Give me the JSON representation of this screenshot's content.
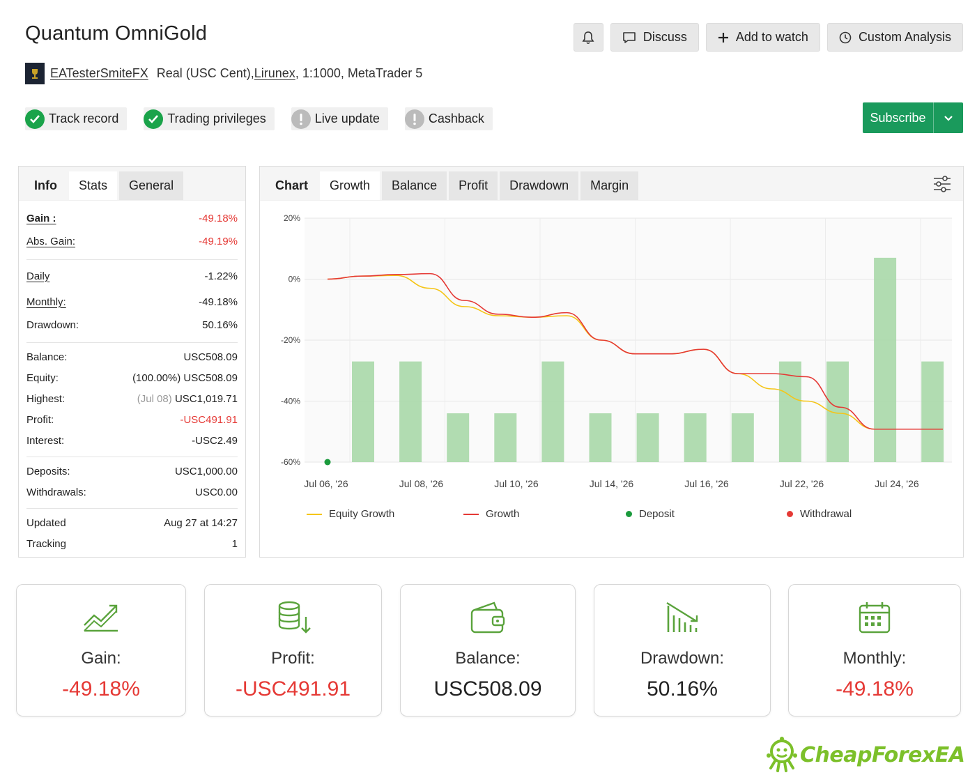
{
  "header": {
    "title": "Quantum OmniGold",
    "author": "EATesterSmiteFX",
    "account_prefix": "Real (USC Cent), ",
    "broker": "Lirunex",
    "account_suffix": ", 1:1000, MetaTrader 5"
  },
  "actions": {
    "discuss": "Discuss",
    "add_to_watch": "Add to watch",
    "custom_analysis": "Custom Analysis",
    "subscribe": "Subscribe"
  },
  "badges": [
    {
      "label": "Track record",
      "status": "ok"
    },
    {
      "label": "Trading privileges",
      "status": "ok"
    },
    {
      "label": "Live update",
      "status": "warn"
    },
    {
      "label": "Cashback",
      "status": "warn"
    }
  ],
  "info_tabs": [
    "Info",
    "Stats",
    "General"
  ],
  "info": {
    "gain_label": "Gain :",
    "gain": "-49.18%",
    "abs_gain_label": "Abs. Gain:",
    "abs_gain": "-49.19%",
    "daily_label": "Daily",
    "daily": "-1.22%",
    "monthly_label": "Monthly:",
    "monthly": "-49.18%",
    "drawdown_label": "Drawdown:",
    "drawdown": "50.16%",
    "balance_label": "Balance:",
    "balance": "USC508.09",
    "equity_label": "Equity:",
    "equity": "(100.00%) USC508.09",
    "highest_label": "Highest:",
    "highest_date": "(Jul 08)",
    "highest": "USC1,019.71",
    "profit_label": "Profit:",
    "profit": "-USC491.91",
    "interest_label": "Interest:",
    "interest": "-USC2.49",
    "deposits_label": "Deposits:",
    "deposits": "USC1,000.00",
    "withdrawals_label": "Withdrawals:",
    "withdrawals": "USC0.00",
    "updated_label": "Updated",
    "updated": "Aug 27 at 14:27",
    "tracking_label": "Tracking",
    "tracking": "1"
  },
  "chart_tabs": [
    "Chart",
    "Growth",
    "Balance",
    "Profit",
    "Drawdown",
    "Margin"
  ],
  "chart_data": {
    "type": "line",
    "ylim": [
      -60,
      20
    ],
    "y_ticks": [
      20,
      0,
      -20,
      -40,
      -60
    ],
    "y_tick_labels": [
      "20%",
      "0%",
      "-20%",
      "-40%",
      "-60%"
    ],
    "x_tick_labels": [
      "Jul 06, '26",
      "Jul 08, '26",
      "Jul 10, '26",
      "Jul 14, '26",
      "Jul 16, '26",
      "Jul 22, '26",
      "Jul 24, '26"
    ],
    "series": [
      {
        "name": "Equity Growth",
        "color": "#f5c518",
        "values": [
          0,
          1,
          1.2,
          -3,
          -9,
          -12,
          -12.5,
          -12,
          -20,
          -24.5,
          -24.5,
          -23,
          -31,
          -36,
          -40,
          -44,
          -49.2,
          -49.2,
          -49.2
        ]
      },
      {
        "name": "Growth",
        "color": "#e53935",
        "values": [
          0,
          1,
          1.5,
          1.8,
          -7,
          -11.5,
          -12.5,
          -11,
          -20,
          -24.5,
          -24.5,
          -23,
          -31,
          -31,
          -32,
          -42,
          -49.2,
          -49.2,
          -49.2
        ]
      }
    ],
    "bars": {
      "color": "#a8d8a8",
      "values": [
        -27,
        -27,
        -44,
        -44,
        -27,
        -44,
        -44,
        -44,
        -44,
        -27,
        -27,
        7,
        -27
      ]
    },
    "deposit_marker": {
      "x_index": 0,
      "y": -60
    },
    "legend": [
      {
        "name": "Equity Growth",
        "kind": "line",
        "color": "#f5c518"
      },
      {
        "name": "Growth",
        "kind": "line",
        "color": "#e53935"
      },
      {
        "name": "Deposit",
        "kind": "dot",
        "color": "#1a9a3c"
      },
      {
        "name": "Withdrawal",
        "kind": "dot",
        "color": "#e53935"
      }
    ],
    "grid": true
  },
  "cards": [
    {
      "label": "Gain:",
      "value": "-49.18%",
      "negative": true,
      "icon": "growth-chart-icon"
    },
    {
      "label": "Profit:",
      "value": "-USC491.91",
      "negative": true,
      "icon": "coins-down-icon"
    },
    {
      "label": "Balance:",
      "value": "USC508.09",
      "negative": false,
      "icon": "wallet-icon"
    },
    {
      "label": "Drawdown:",
      "value": "50.16%",
      "negative": false,
      "icon": "drawdown-bars-icon"
    },
    {
      "label": "Monthly:",
      "value": "-49.18%",
      "negative": true,
      "icon": "calendar-icon"
    }
  ],
  "brand": "CheapForexEA",
  "colors": {
    "accent_green": "#1a9a5c",
    "negative": "#e53935",
    "icon_green": "#5aa33c"
  }
}
